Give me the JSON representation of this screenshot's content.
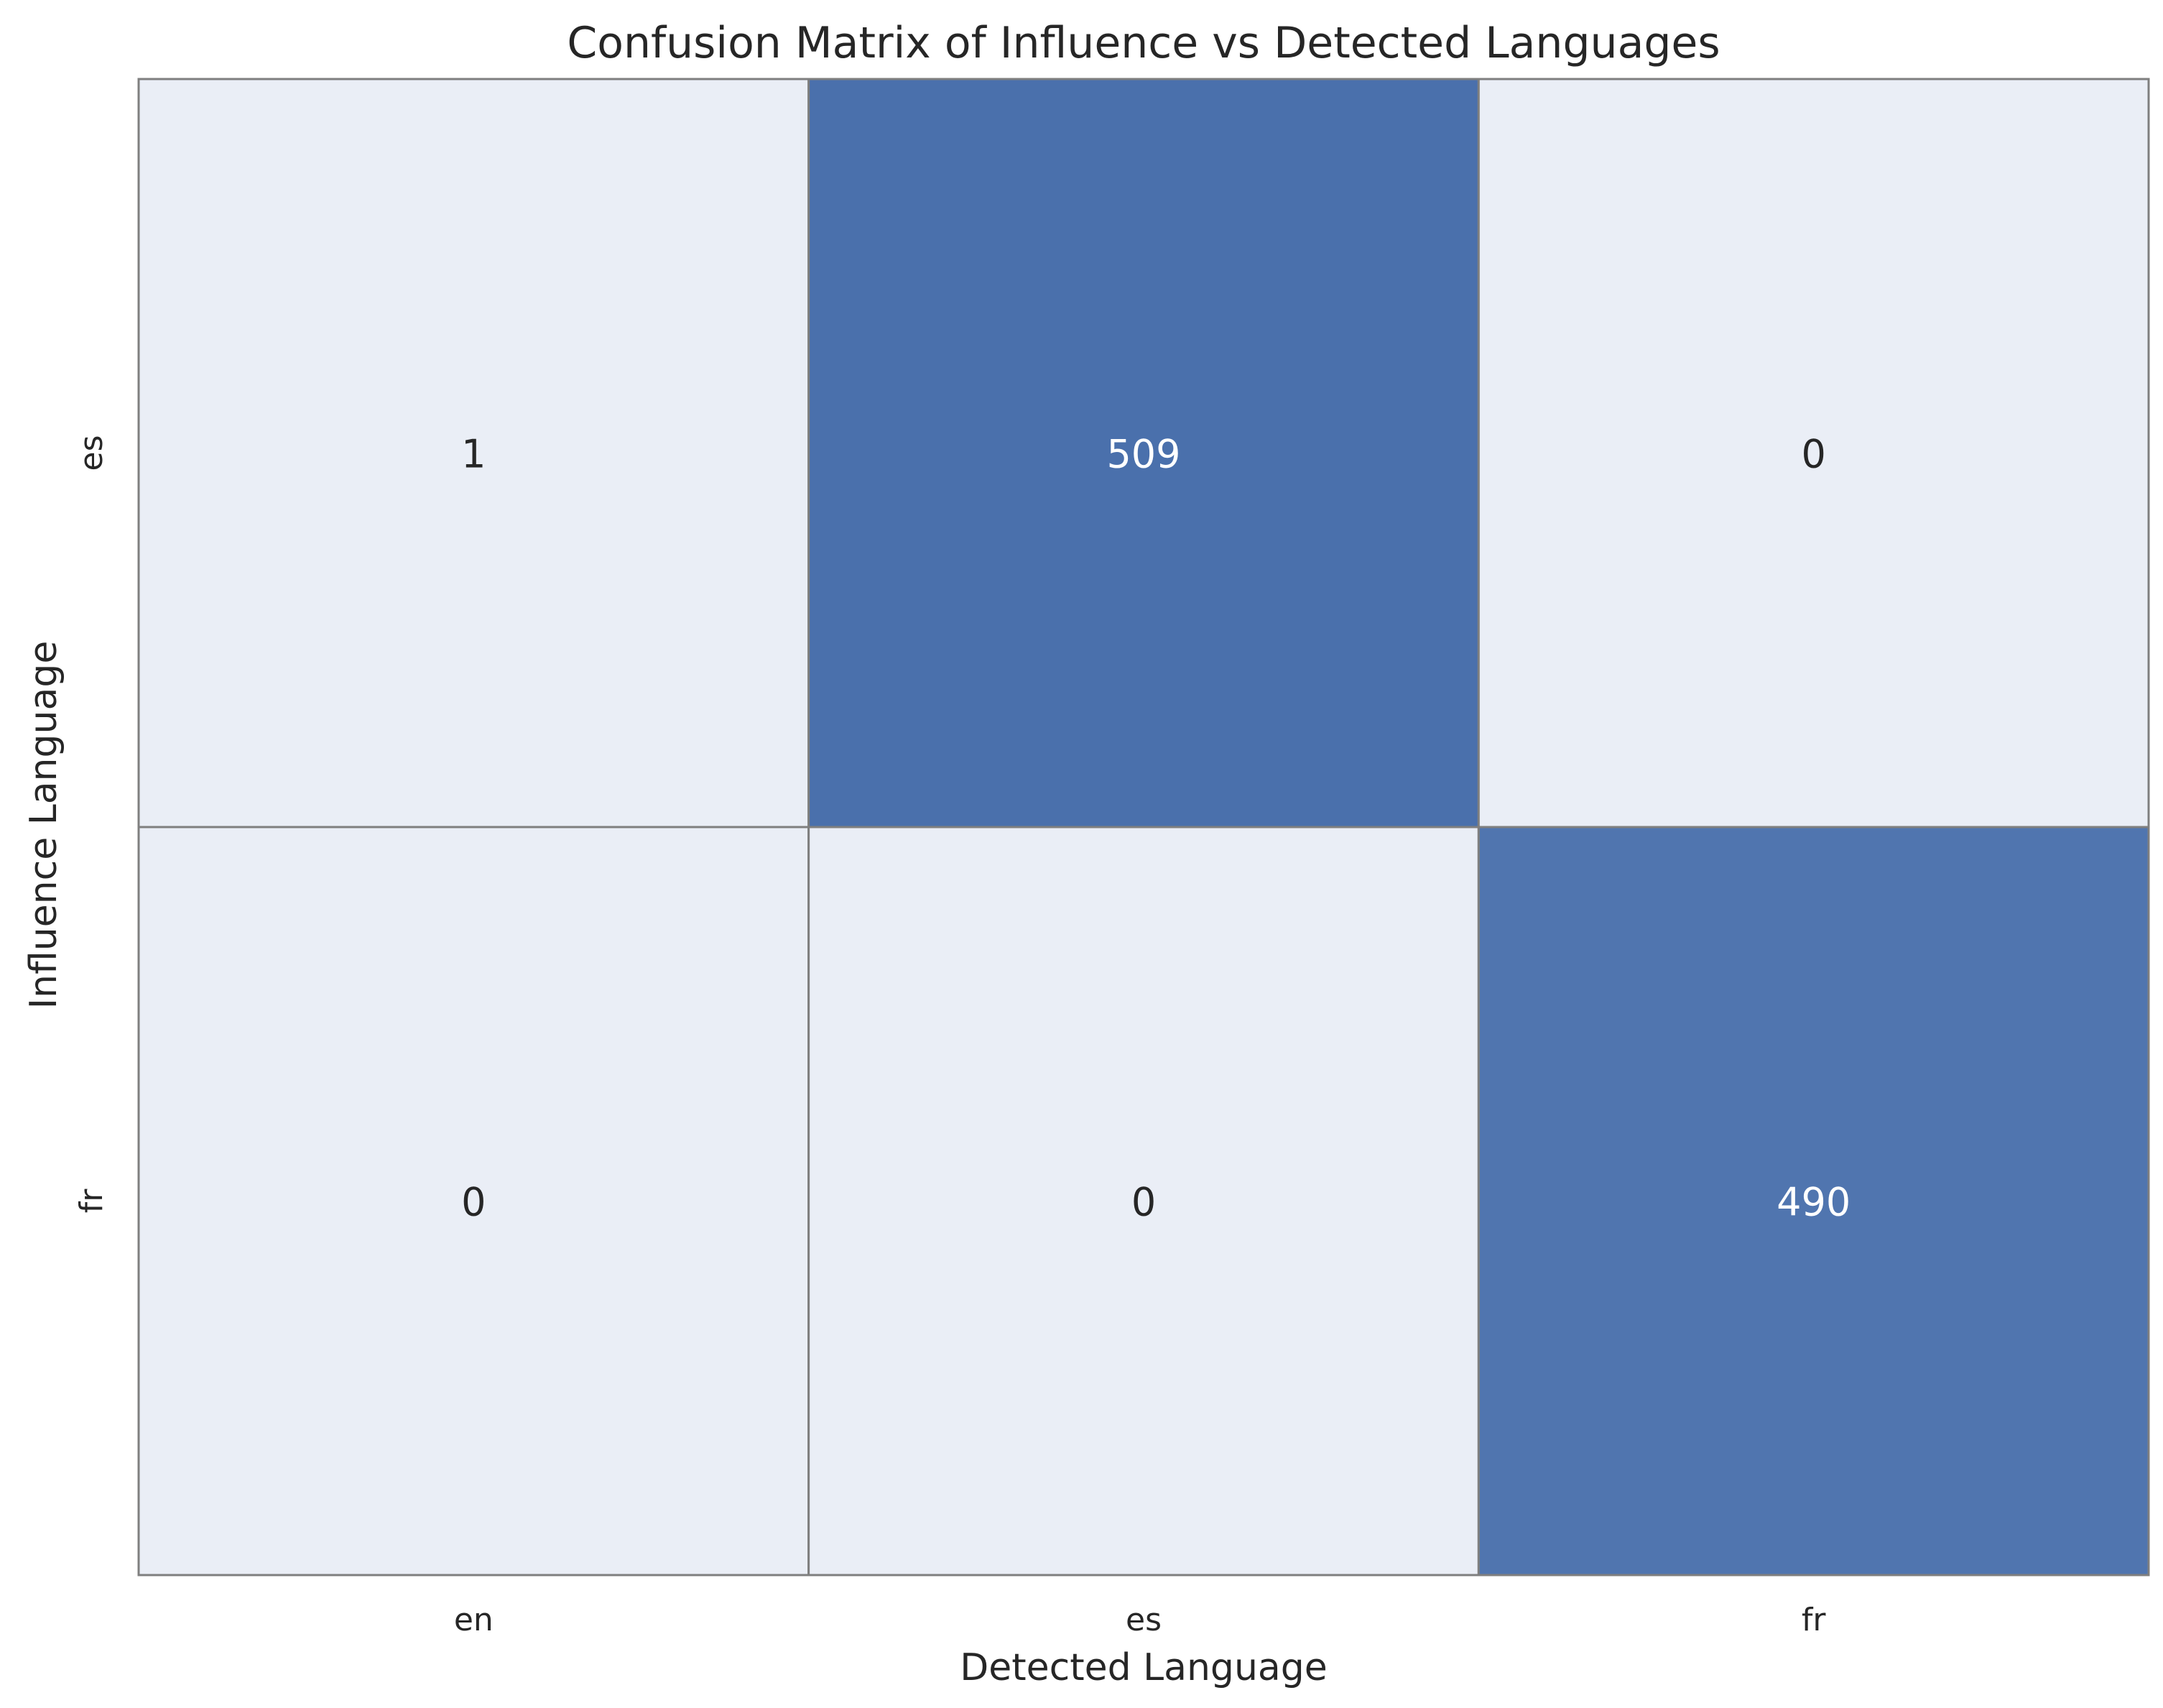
{
  "chart_data": {
    "type": "heatmap",
    "title": "Confusion Matrix of Influence vs Detected Languages",
    "xlabel": "Detected Language",
    "ylabel": "Influence Language",
    "x_categories": [
      "en",
      "es",
      "fr"
    ],
    "y_categories": [
      "es",
      "fr"
    ],
    "values": [
      [
        1,
        509,
        0
      ],
      [
        0,
        0,
        490
      ]
    ],
    "colorbar": false,
    "colors": {
      "low": "#eaeef6",
      "high": "#4a70ac",
      "grid_line": "#7f7f7f",
      "text_dark": "#262626",
      "text_light": "#ffffff"
    }
  }
}
